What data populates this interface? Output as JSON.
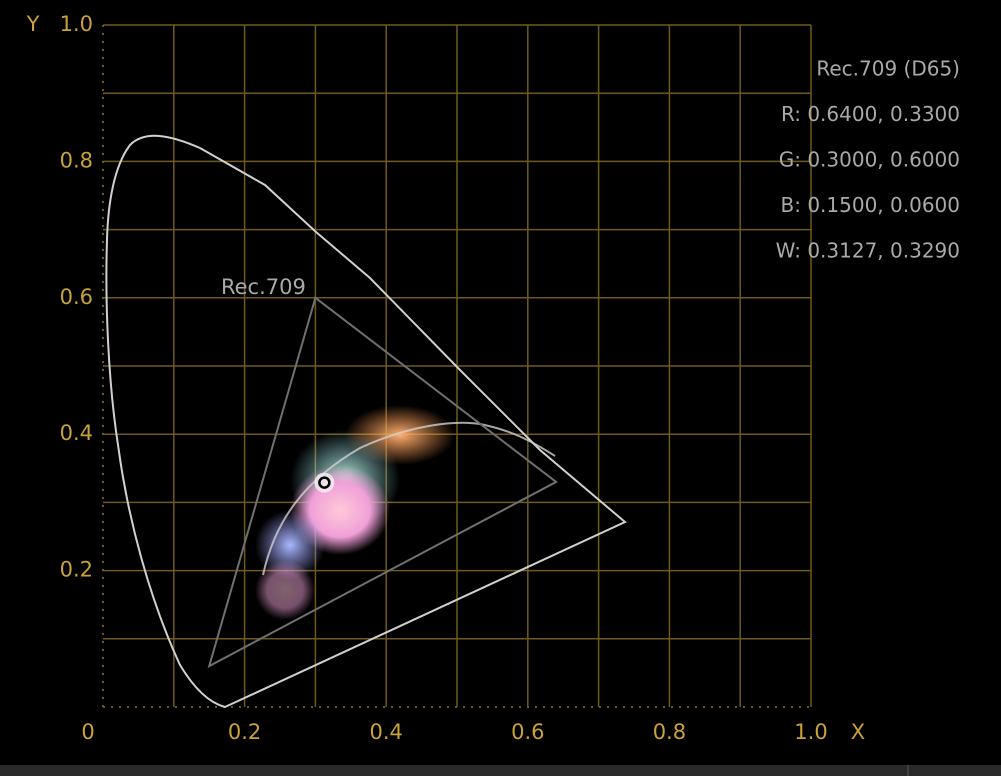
{
  "chart_data": {
    "type": "cie",
    "x_label": "X",
    "y_label": "Y",
    "xlim": [
      0,
      1
    ],
    "ylim": [
      0,
      1
    ],
    "xticks": [
      0,
      0.2,
      0.4,
      0.6,
      0.8,
      {
        "value": 1,
        "label": "1.0"
      }
    ],
    "yticks": [
      0.2,
      0.4,
      0.6,
      0.8,
      {
        "value": 1,
        "label": "1.0"
      }
    ],
    "gridlines": [
      0.1,
      0.2,
      0.3,
      0.4,
      0.5,
      0.6,
      0.7,
      0.8,
      0.9,
      1
    ],
    "gamut": {
      "label": "Rec.709",
      "vertices": [
        [
          0.64,
          0.33
        ],
        [
          0.3,
          0.6
        ],
        [
          0.15,
          0.06
        ]
      ],
      "white": [
        0.3127,
        0.329
      ],
      "color": "#707070"
    },
    "info": [
      "Rec.709 (D65)",
      "R: 0.6400, 0.3300",
      "G: 0.3000, 0.6000",
      "B: 0.1500, 0.0600",
      "W: 0.3127, 0.3290"
    ]
  }
}
